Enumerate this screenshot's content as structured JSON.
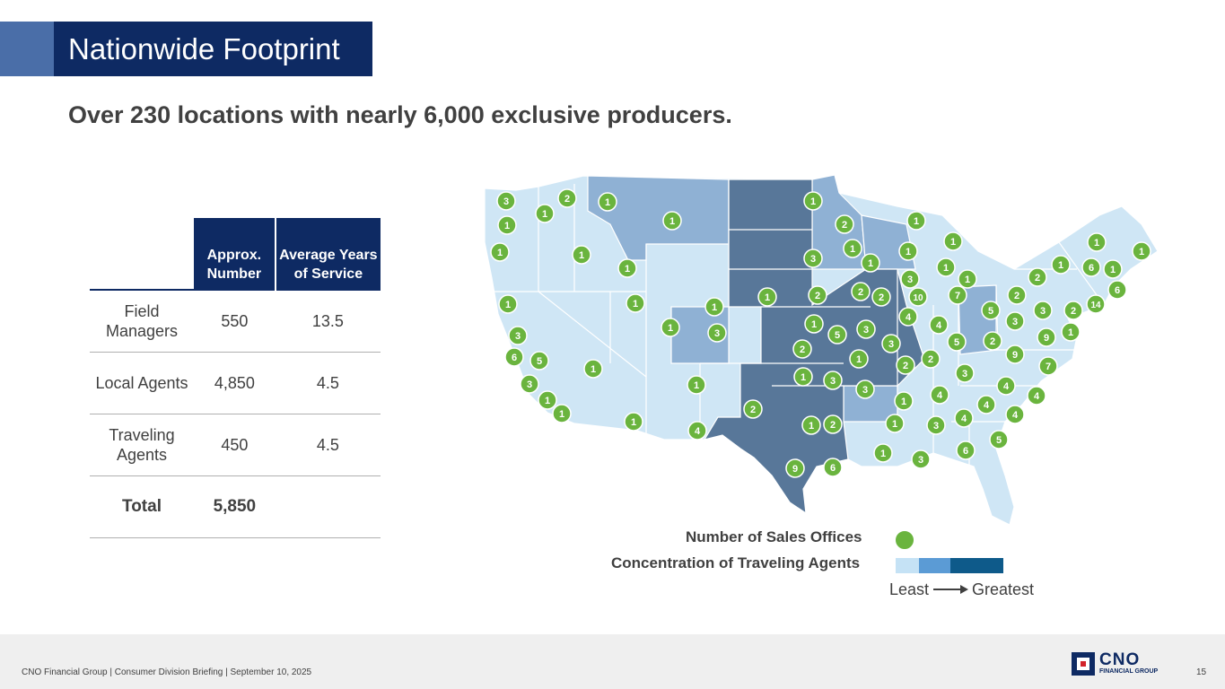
{
  "slide": {
    "title": "Nationwide Footprint",
    "subtitle": "Over 230 locations with nearly 6,000 exclusive producers."
  },
  "table": {
    "headers": [
      "Approx. Number",
      "Average Years of Service"
    ],
    "rows": [
      {
        "label": "Field Managers",
        "number": "550",
        "years": "13.5"
      },
      {
        "label": "Local Agents",
        "number": "4,850",
        "years": "4.5"
      },
      {
        "label": "Traveling Agents",
        "number": "450",
        "years": "4.5"
      }
    ],
    "total": {
      "label": "Total",
      "number": "5,850",
      "years": ""
    }
  },
  "map": {
    "office_counts": [
      "3",
      "2",
      "1",
      "1",
      "1",
      "1",
      "1",
      "2",
      "1",
      "1",
      "1",
      "1",
      "3",
      "1",
      "1",
      "1",
      "1",
      "1",
      "1",
      "3",
      "2",
      "1",
      "6",
      "1",
      "1",
      "1",
      "2",
      "2",
      "2",
      "10",
      "4",
      "1",
      "7",
      "2",
      "3",
      "3",
      "2",
      "14",
      "6",
      "5",
      "4",
      "9",
      "1",
      "1",
      "1",
      "1",
      "1",
      "3",
      "3",
      "5",
      "1",
      "3",
      "6",
      "5",
      "2",
      "9",
      "7",
      "5",
      "1",
      "2",
      "1",
      "3",
      "2",
      "2",
      "3",
      "1",
      "3",
      "4",
      "4",
      "1",
      "3",
      "3",
      "1",
      "4",
      "4",
      "4",
      "1",
      "1",
      "2",
      "1",
      "4",
      "1",
      "2",
      "1",
      "3",
      "4",
      "5",
      "6",
      "1",
      "3",
      "9",
      "6"
    ],
    "color_least": "#cfe6f5",
    "color_mid": "#8fb1d4",
    "color_greatest": "#587799",
    "dot_color": "#6ab43e"
  },
  "legend": {
    "offices_label": "Number of Sales Offices",
    "agents_label": "Concentration of Traveling Agents",
    "least": "Least",
    "greatest": "Greatest",
    "ramp_colors": [
      "#c5e2f5",
      "#5b9bd5",
      "#0e5a8a"
    ]
  },
  "footer": {
    "text": "CNO Financial Group  |  Consumer Division Briefing  |  September 10, 2025",
    "page": "15",
    "logo_name": "CNO",
    "logo_sub": "FINANCIAL GROUP"
  }
}
